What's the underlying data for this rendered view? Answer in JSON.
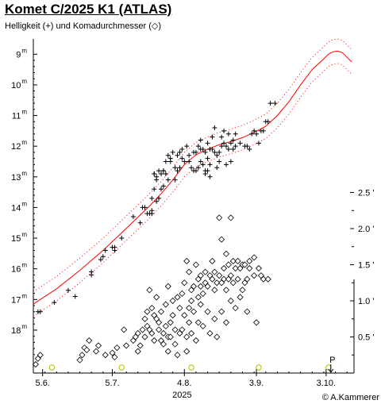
{
  "title": "Komet C/2025 K1 (ATLAS)",
  "subtitle": "Helligkeit (+) und Komadurchmesser (◇)",
  "copyright": "© A.Kammerer",
  "chart_data": {
    "type": "scatter",
    "x_axis": {
      "unit": "days since 2025-06-01",
      "range": [
        0,
        138
      ],
      "ticks": [
        {
          "x": 4,
          "label": "5.6."
        },
        {
          "x": 34,
          "label": "5.7."
        },
        {
          "x": 65,
          "label": "4.8."
        },
        {
          "x": 96,
          "label": "3.9."
        },
        {
          "x": 126,
          "label": "3.10."
        }
      ],
      "year_label": "2025"
    },
    "y_axis_mag": {
      "inverted": true,
      "range": [
        8.5,
        19.4
      ],
      "tick_sup": "m",
      "ticks": [
        {
          "v": 9,
          "label": "9"
        },
        {
          "v": 10,
          "label": "10"
        },
        {
          "v": 11,
          "label": "11"
        },
        {
          "v": 12,
          "label": "12"
        },
        {
          "v": 13,
          "label": "13"
        },
        {
          "v": 14,
          "label": "14"
        },
        {
          "v": 15,
          "label": "15"
        },
        {
          "v": 16,
          "label": "16"
        },
        {
          "v": 17,
          "label": "17"
        },
        {
          "v": 18,
          "label": "18"
        }
      ]
    },
    "y_axis_coma": {
      "range": [
        0,
        2.5
      ],
      "ticks": [
        {
          "v": 0.5,
          "label": "0.5 '"
        },
        {
          "v": 1.0,
          "label": "1.0 '"
        },
        {
          "v": 1.5,
          "label": "1.5 '"
        },
        {
          "v": 2.0,
          "label": "2.0 '"
        },
        {
          "v": 2.5,
          "label": "2.5 '"
        }
      ]
    },
    "series": [
      {
        "kind": "magnitude_observations",
        "marker": "+",
        "points": [
          [
            2,
            17.4
          ],
          [
            3,
            17.4
          ],
          [
            9,
            17.1
          ],
          [
            15,
            16.7
          ],
          [
            18,
            16.9
          ],
          [
            25,
            16.2
          ],
          [
            25,
            16.1
          ],
          [
            29,
            15.7
          ],
          [
            30,
            15.6
          ],
          [
            31,
            15.4
          ],
          [
            34,
            15.3
          ],
          [
            35,
            15.4
          ],
          [
            35,
            15.3
          ],
          [
            38,
            15.0
          ],
          [
            43,
            14.3
          ],
          [
            46,
            14.5
          ],
          [
            47,
            14.0
          ],
          [
            48,
            14.0
          ],
          [
            49,
            14.2
          ],
          [
            50,
            14.2
          ],
          [
            51,
            13.7
          ],
          [
            51,
            14.1
          ],
          [
            51,
            14.2
          ],
          [
            52,
            13.4
          ],
          [
            52,
            12.9
          ],
          [
            52,
            12.9
          ],
          [
            53,
            13.8
          ],
          [
            53,
            13.1
          ],
          [
            53,
            13.0
          ],
          [
            54,
            12.8
          ],
          [
            54,
            13.7
          ],
          [
            55,
            13.4
          ],
          [
            55,
            12.9
          ],
          [
            56,
            12.8
          ],
          [
            56,
            12.8
          ],
          [
            56,
            13.3
          ],
          [
            57,
            12.5
          ],
          [
            57,
            12.9
          ],
          [
            58,
            12.3
          ],
          [
            58,
            13.1
          ],
          [
            59,
            12.5
          ],
          [
            59,
            12.4
          ],
          [
            60,
            12.2
          ],
          [
            61,
            12.7
          ],
          [
            61,
            13.1
          ],
          [
            62,
            12.3
          ],
          [
            62,
            12.8
          ],
          [
            63,
            12.2
          ],
          [
            63,
            12.7
          ],
          [
            64,
            12.1
          ],
          [
            64,
            12.4
          ],
          [
            65,
            12.5
          ],
          [
            66,
            12.0
          ],
          [
            67,
            12.3
          ],
          [
            67,
            12.5
          ],
          [
            68,
            12.7
          ],
          [
            69,
            12.2
          ],
          [
            69,
            12.8
          ],
          [
            70,
            12.8
          ],
          [
            70,
            12.2
          ],
          [
            71,
            12.0
          ],
          [
            71,
            12.7
          ],
          [
            72,
            12.1
          ],
          [
            72,
            12.5
          ],
          [
            72,
            11.8
          ],
          [
            73,
            12.6
          ],
          [
            73,
            12.1
          ],
          [
            74,
            12.9
          ],
          [
            74,
            12.8
          ],
          [
            74,
            12.2
          ],
          [
            75,
            11.9
          ],
          [
            75,
            12.4
          ],
          [
            75,
            12.8
          ],
          [
            76,
            12.1
          ],
          [
            76,
            12.6
          ],
          [
            76,
            13.0
          ],
          [
            77,
            11.7
          ],
          [
            77,
            12.1
          ],
          [
            78,
            12.2
          ],
          [
            78,
            11.4
          ],
          [
            79,
            12.3
          ],
          [
            79,
            12.7
          ],
          [
            80,
            12.2
          ],
          [
            80,
            12.5
          ],
          [
            81,
            11.7
          ],
          [
            81,
            12.0
          ],
          [
            82,
            11.9
          ],
          [
            82,
            11.5
          ],
          [
            83,
            12.6
          ],
          [
            83,
            12.0
          ],
          [
            84,
            11.6
          ],
          [
            84,
            12.1
          ],
          [
            85,
            11.9
          ],
          [
            85,
            12.5
          ],
          [
            86,
            11.8
          ],
          [
            86,
            12.1
          ],
          [
            87,
            11.6
          ],
          [
            87,
            12.0
          ],
          [
            89,
            11.9
          ],
          [
            91,
            12.0
          ],
          [
            92,
            12.0
          ],
          [
            93,
            12.1
          ],
          [
            94,
            11.6
          ],
          [
            95,
            11.5
          ],
          [
            96,
            11.6
          ],
          [
            97,
            11.9
          ],
          [
            98,
            11.5
          ],
          [
            99,
            11.5
          ],
          [
            100,
            11.2
          ],
          [
            101,
            11.2
          ],
          [
            102,
            10.6
          ],
          [
            104,
            10.6
          ]
        ]
      },
      {
        "kind": "magnitude_model",
        "color": "#ff0000",
        "points": [
          [
            0,
            17.15
          ],
          [
            10,
            16.65
          ],
          [
            20,
            16.05
          ],
          [
            30,
            15.4
          ],
          [
            40,
            14.68
          ],
          [
            50,
            13.95
          ],
          [
            55,
            13.55
          ],
          [
            60,
            13.1
          ],
          [
            65,
            12.6
          ],
          [
            70,
            12.28
          ],
          [
            75,
            12.1
          ],
          [
            80,
            11.95
          ],
          [
            85,
            11.85
          ],
          [
            90,
            11.72
          ],
          [
            95,
            11.55
          ],
          [
            100,
            11.35
          ],
          [
            105,
            11.0
          ],
          [
            110,
            10.55
          ],
          [
            115,
            10.0
          ],
          [
            120,
            9.5
          ],
          [
            125,
            9.15
          ],
          [
            127,
            9.0
          ],
          [
            129,
            8.92
          ],
          [
            131,
            8.9
          ],
          [
            133,
            8.95
          ],
          [
            135,
            9.1
          ],
          [
            137,
            9.25
          ]
        ],
        "band": 0.4
      },
      {
        "kind": "coma_observations",
        "marker": "diamond",
        "points": [
          [
            1,
            0.12
          ],
          [
            2,
            0.2
          ],
          [
            3,
            0.25
          ],
          [
            20,
            0.18
          ],
          [
            21,
            0.25
          ],
          [
            22,
            0.35
          ],
          [
            23,
            0.32
          ],
          [
            24,
            0.45
          ],
          [
            27,
            0.3
          ],
          [
            28,
            0.38
          ],
          [
            31,
            0.25
          ],
          [
            34,
            0.28
          ],
          [
            35,
            0.22
          ],
          [
            36,
            0.35
          ],
          [
            39,
            0.6
          ],
          [
            40,
            0.38
          ],
          [
            43,
            0.45
          ],
          [
            44,
            0.5
          ],
          [
            45,
            0.3
          ],
          [
            45,
            0.55
          ],
          [
            46,
            0.38
          ],
          [
            47,
            0.6
          ],
          [
            48,
            0.5
          ],
          [
            48,
            0.75
          ],
          [
            49,
            0.65
          ],
          [
            49,
            0.85
          ],
          [
            50,
            0.6
          ],
          [
            50,
            1.15
          ],
          [
            51,
            0.9
          ],
          [
            51,
            0.55
          ],
          [
            52,
            0.8
          ],
          [
            52,
            0.45
          ],
          [
            53,
            1.05
          ],
          [
            53,
            0.75
          ],
          [
            54,
            0.7
          ],
          [
            54,
            0.6
          ],
          [
            55,
            0.85
          ],
          [
            55,
            0.45
          ],
          [
            56,
            0.55
          ],
          [
            56,
            0.4
          ],
          [
            57,
            0.65
          ],
          [
            57,
            0.95
          ],
          [
            58,
            0.5
          ],
          [
            58,
            0.3
          ],
          [
            58,
            1.2
          ],
          [
            59,
            0.7
          ],
          [
            59,
            0.5
          ],
          [
            60,
            1.0
          ],
          [
            60,
            0.8
          ],
          [
            61,
            0.4
          ],
          [
            61,
            0.6
          ],
          [
            62,
            1.05
          ],
          [
            62,
            0.25
          ],
          [
            63,
            0.55
          ],
          [
            63,
            0.9
          ],
          [
            64,
            0.6
          ],
          [
            64,
            1.1
          ],
          [
            65,
            0.8
          ],
          [
            65,
            1.25
          ],
          [
            66,
            1.55
          ],
          [
            66,
            0.5
          ],
          [
            66,
            0.3
          ],
          [
            67,
            0.9
          ],
          [
            67,
            1.4
          ],
          [
            67,
            0.7
          ],
          [
            68,
            1.15
          ],
          [
            68,
            1.0
          ],
          [
            68,
            0.55
          ],
          [
            69,
            1.2
          ],
          [
            69,
            0.85
          ],
          [
            70,
            1.5
          ],
          [
            70,
            0.45
          ],
          [
            71,
            1.3
          ],
          [
            71,
            1.05
          ],
          [
            71,
            0.7
          ],
          [
            72,
            0.95
          ],
          [
            72,
            1.35
          ],
          [
            72,
            1.2
          ],
          [
            73,
            1.1
          ],
          [
            73,
            0.65
          ],
          [
            74,
            1.4
          ],
          [
            74,
            1.25
          ],
          [
            75,
            0.85
          ],
          [
            75,
            1.2
          ],
          [
            76,
            1.35
          ],
          [
            76,
            0.55
          ],
          [
            77,
            1.3
          ],
          [
            77,
            1.55
          ],
          [
            78,
            1.15
          ],
          [
            78,
            0.75
          ],
          [
            78,
            1.4
          ],
          [
            79,
            1.25
          ],
          [
            79,
            0.5
          ],
          [
            80,
            2.15
          ],
          [
            80,
            1.35
          ],
          [
            81,
            1.25
          ],
          [
            81,
            0.85
          ],
          [
            81,
            1.85
          ],
          [
            82,
            1.45
          ],
          [
            82,
            1.3
          ],
          [
            83,
            1.65
          ],
          [
            83,
            1.15
          ],
          [
            83,
            0.7
          ],
          [
            84,
            1.5
          ],
          [
            84,
            1.3
          ],
          [
            85,
            2.15
          ],
          [
            85,
            1.35
          ],
          [
            85,
            1.0
          ],
          [
            86,
            1.55
          ],
          [
            86,
            1.25
          ],
          [
            87,
            1.45
          ],
          [
            87,
            0.9
          ],
          [
            88,
            1.55
          ],
          [
            88,
            1.3
          ],
          [
            89,
            1.45
          ],
          [
            89,
            1.05
          ],
          [
            90,
            1.15
          ],
          [
            90,
            1.5
          ],
          [
            91,
            1.5
          ],
          [
            91,
            1.25
          ],
          [
            92,
            1.3
          ],
          [
            92,
            0.85
          ],
          [
            93,
            1.55
          ],
          [
            93,
            1.45
          ],
          [
            95,
            1.6
          ],
          [
            95,
            1.35
          ],
          [
            96,
            0.7
          ],
          [
            97,
            1.45
          ],
          [
            98,
            1.35
          ],
          [
            99,
            1.3
          ],
          [
            101,
            1.3
          ]
        ]
      }
    ],
    "full_moons": [
      8,
      38,
      68,
      97,
      127
    ],
    "perihelion": {
      "x": 127,
      "label": "P"
    }
  }
}
